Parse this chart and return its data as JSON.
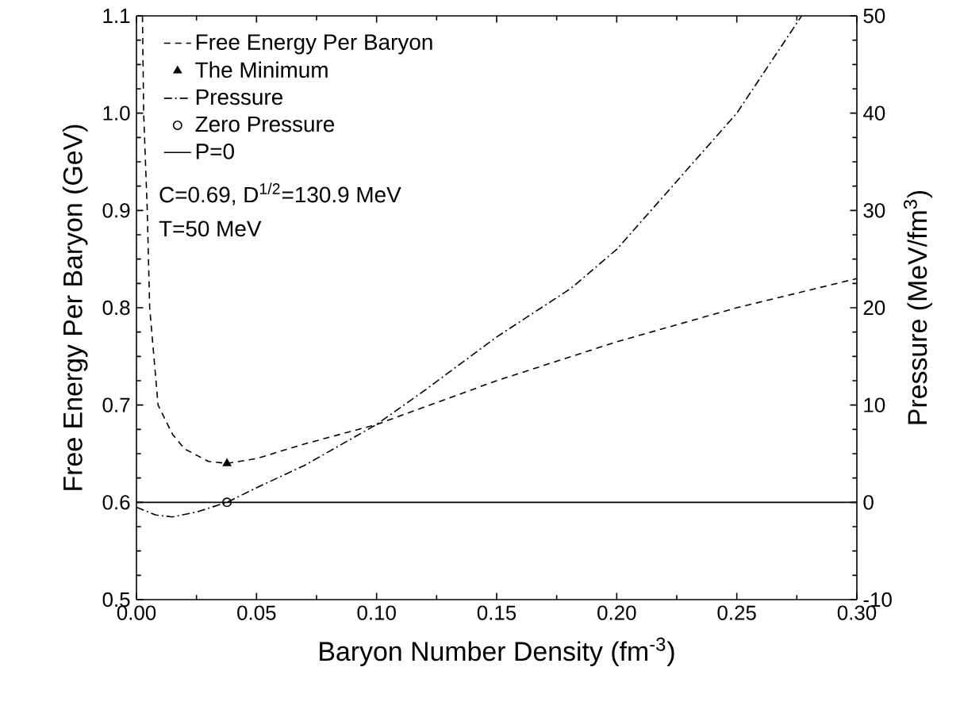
{
  "chart_data": {
    "type": "line",
    "xlabel": "Baryon Number Density (fm$^{-3}$)",
    "ylabel": "Free Energy Per Baryon (GeV)",
    "y2label": "Pressure (MeV/fm$^{3}$)",
    "xlim": [
      0,
      0.3
    ],
    "xticks": [
      {
        "value": 0,
        "label": "0.00"
      },
      {
        "value": 0.05,
        "label": "0.05"
      },
      {
        "value": 0.1,
        "label": "0.10"
      },
      {
        "value": 0.15,
        "label": "0.15"
      },
      {
        "value": 0.2,
        "label": "0.20"
      },
      {
        "value": 0.25,
        "label": "0.25"
      },
      {
        "value": 0.3,
        "label": "0.30"
      }
    ],
    "ylim": [
      0.5,
      1.1
    ],
    "yticks": [
      0.5,
      0.6,
      0.7,
      0.8,
      0.9,
      {
        "value": 1.0,
        "label": "1.0"
      },
      1.1
    ],
    "y2lim": [
      -10,
      50
    ],
    "y2ticks": [
      -10,
      0,
      10,
      20,
      30,
      40,
      50
    ],
    "legend": "top left",
    "grid": false,
    "series": [
      {
        "name": "Free Energy Per Baryon",
        "type": "line",
        "line_style": "dashed",
        "color": "#000000",
        "x": [
          0.0025,
          0.003,
          0.0045,
          0.0055,
          0.009,
          0.015,
          0.02,
          0.03,
          0.0377,
          0.05,
          0.07,
          0.1,
          0.15,
          0.2,
          0.25,
          0.3
        ],
        "values": [
          1.1,
          1.0,
          0.9,
          0.8,
          0.7,
          0.67,
          0.655,
          0.642,
          0.64,
          0.645,
          0.66,
          0.68,
          0.725,
          0.765,
          0.8,
          0.83
        ]
      },
      {
        "name": "The Minimum",
        "type": "scatter",
        "marker": "triangle",
        "color": "#000000",
        "x": [
          0.0377
        ],
        "values": [
          0.64
        ]
      },
      {
        "name": "Pressure",
        "type": "line",
        "axis": "y2",
        "line_style": "dashdot",
        "color": "#000000",
        "x": [
          0,
          0.008,
          0.015,
          0.025,
          0.0377,
          0.05,
          0.07,
          0.1,
          0.12,
          0.15,
          0.181,
          0.2,
          0.25,
          0.277
        ],
        "values": [
          -0.5,
          -1.3,
          -1.5,
          -1.0,
          0,
          1.5,
          3.8,
          8,
          11.5,
          17,
          22,
          26,
          40,
          50
        ]
      },
      {
        "name": "Zero Pressure",
        "type": "scatter",
        "marker": "circle",
        "color": "#000000",
        "x": [
          0.0377
        ],
        "values": [
          0.6
        ]
      },
      {
        "name": "P=0",
        "type": "line",
        "axis": "y2",
        "line_style": "solid",
        "color": "#000000",
        "x": [
          0,
          0.3
        ],
        "values": [
          0,
          0
        ]
      }
    ],
    "annotations": [
      "C=0.69, D$^{1/2}$=130.9 MeV",
      "T=50 MeV"
    ]
  }
}
